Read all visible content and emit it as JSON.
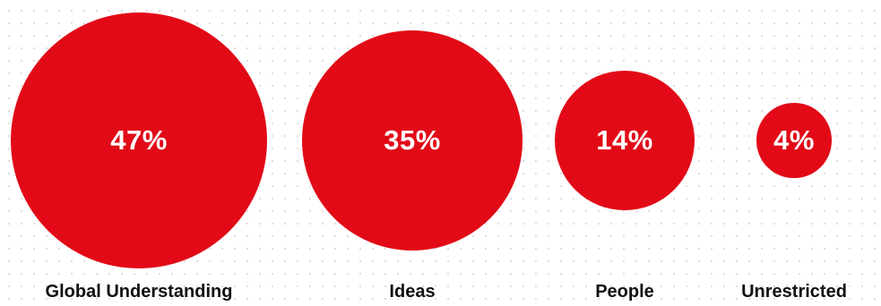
{
  "chart_data": {
    "type": "bubble",
    "unit": "%",
    "color": "#e20a17",
    "categories": [
      "Global Understanding",
      "Ideas",
      "People",
      "Unrestricted"
    ],
    "values": [
      47,
      35,
      14,
      4
    ],
    "value_labels": [
      "47%",
      "35%",
      "14%",
      "4%"
    ],
    "title": "",
    "xlabel": "",
    "ylabel": "",
    "grid": false,
    "legend": "none"
  }
}
